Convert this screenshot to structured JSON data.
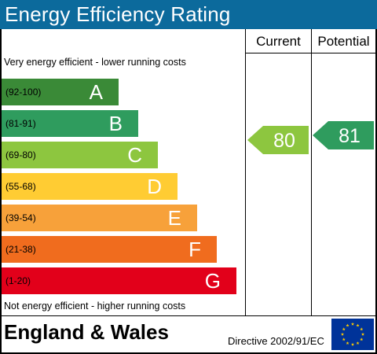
{
  "header": {
    "title": "Energy Efficiency Rating"
  },
  "columns": {
    "current": "Current",
    "potential": "Potential"
  },
  "captions": {
    "top": "Very energy efficient - lower running costs",
    "bottom": "Not energy efficient - higher running costs"
  },
  "chart_data": {
    "type": "bar",
    "categories": [
      "A",
      "B",
      "C",
      "D",
      "E",
      "F",
      "G"
    ],
    "bands": [
      {
        "letter": "A",
        "range": "(92-100)",
        "min": 92,
        "max": 100,
        "color": "#3a8a37"
      },
      {
        "letter": "B",
        "range": "(81-91)",
        "min": 81,
        "max": 91,
        "color": "#2f9c5e"
      },
      {
        "letter": "C",
        "range": "(69-80)",
        "min": 69,
        "max": 80,
        "color": "#8dc63f"
      },
      {
        "letter": "D",
        "range": "(55-68)",
        "min": 55,
        "max": 68,
        "color": "#ffcc33"
      },
      {
        "letter": "E",
        "range": "(39-54)",
        "min": 39,
        "max": 54,
        "color": "#f7a13a"
      },
      {
        "letter": "F",
        "range": "(21-38)",
        "min": 21,
        "max": 38,
        "color": "#f06c1e"
      },
      {
        "letter": "G",
        "range": "(1-20)",
        "min": 1,
        "max": 20,
        "color": "#e2001a"
      }
    ],
    "current": {
      "value": 80,
      "band": "C",
      "color": "#8dc63f"
    },
    "potential": {
      "value": 81,
      "band": "B",
      "color": "#2f9c5e"
    }
  },
  "footer": {
    "region": "England & Wales",
    "directive": "Directive 2002/91/EC",
    "flag_icon": "eu-flag-icon"
  }
}
